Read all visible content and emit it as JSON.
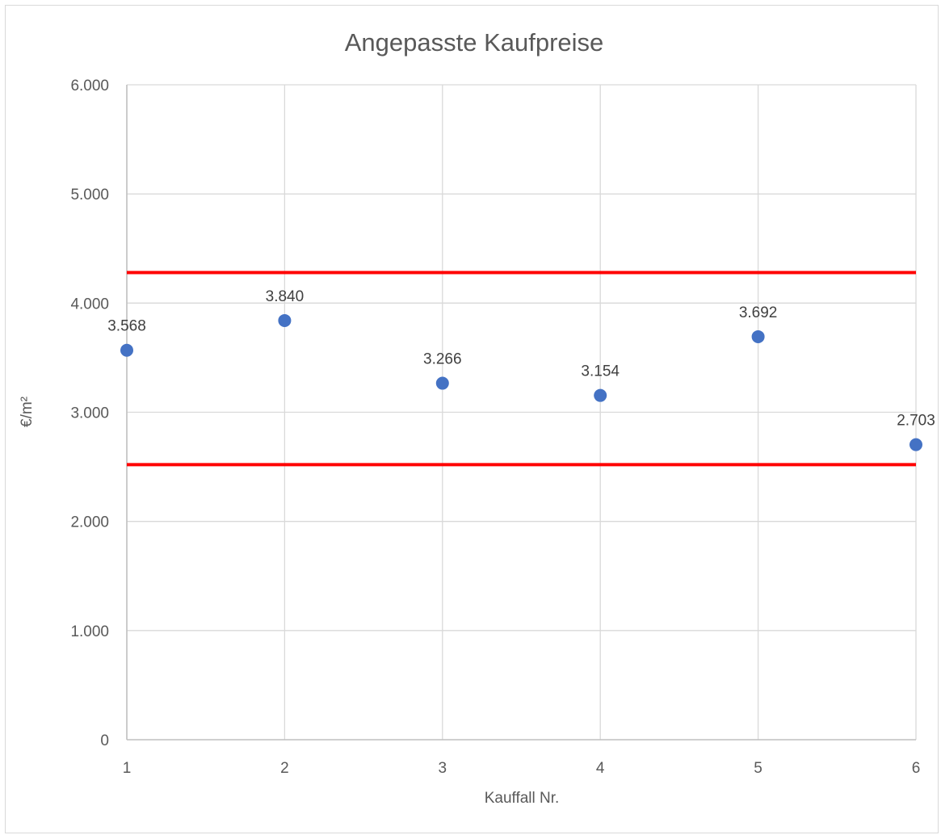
{
  "chart_data": {
    "type": "scatter",
    "title": "Angepasste Kaufpreise",
    "xlabel": "Kauffall Nr.",
    "ylabel": "€/m²",
    "xlim": [
      1,
      6
    ],
    "ylim": [
      0,
      6000
    ],
    "x_ticks": [
      1,
      2,
      3,
      4,
      5,
      6
    ],
    "x_tick_labels": [
      "1",
      "2",
      "3",
      "4",
      "5",
      "6"
    ],
    "y_ticks": [
      0,
      1000,
      2000,
      3000,
      4000,
      5000,
      6000
    ],
    "y_tick_labels": [
      "0",
      "1.000",
      "2.000",
      "3.000",
      "4.000",
      "5.000",
      "6.000"
    ],
    "grid": true,
    "legend": "none",
    "series": [
      {
        "color": "#4472c4",
        "x": [
          1,
          2,
          3,
          4,
          5,
          6
        ],
        "y": [
          3568,
          3840,
          3266,
          3154,
          3692,
          2703
        ],
        "labels": [
          "3.568",
          "3.840",
          "3.266",
          "3.154",
          "3.692",
          "2.703"
        ]
      }
    ],
    "reference_lines": [
      {
        "y": 4280,
        "color": "#ff0000"
      },
      {
        "y": 2520,
        "color": "#ff0000"
      }
    ]
  }
}
